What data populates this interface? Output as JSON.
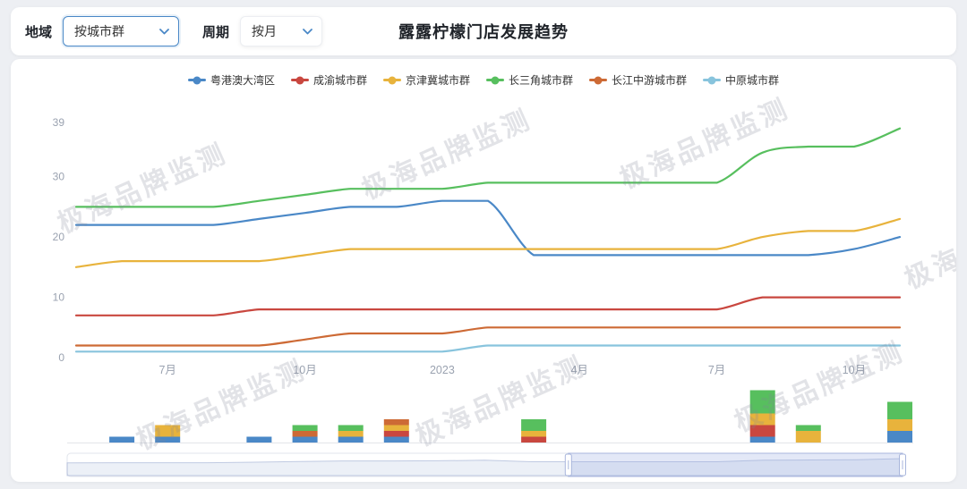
{
  "header": {
    "region_label": "地域",
    "region_select": {
      "value": "按城市群"
    },
    "period_label": "周期",
    "period_select": {
      "value": "按月"
    },
    "title": "露露柠檬门店发展趋势"
  },
  "watermark_text": "极海品牌监测",
  "chart_data": {
    "type": "line",
    "title": "露露柠檬门店发展趋势",
    "x": [
      "2022-05",
      "2022-06",
      "2022-07",
      "2022-08",
      "2022-09",
      "2022-10",
      "2022-11",
      "2022-12",
      "2023-01",
      "2023-02",
      "2023-03",
      "2023-04",
      "2023-05",
      "2023-06",
      "2023-07",
      "2023-08",
      "2023-09",
      "2023-10",
      "2023-11"
    ],
    "x_tick_labels": [
      "7月",
      "10月",
      "2023",
      "4月",
      "7月",
      "10月"
    ],
    "x_tick_indices": [
      2,
      5,
      8,
      11,
      14,
      17
    ],
    "yticks": [
      0,
      10,
      20,
      30,
      39
    ],
    "ylim": [
      0,
      39
    ],
    "grid": false,
    "legend_position": "top",
    "series": [
      {
        "name": "粤港澳大湾区",
        "color": "#4a88c7",
        "values": [
          22,
          22,
          22,
          22,
          23,
          24,
          25,
          25,
          26,
          26,
          17,
          17,
          17,
          17,
          17,
          17,
          17,
          18,
          20
        ]
      },
      {
        "name": "成渝城市群",
        "color": "#c9473f",
        "values": [
          7,
          7,
          7,
          7,
          8,
          8,
          8,
          8,
          8,
          8,
          8,
          8,
          8,
          8,
          8,
          10,
          10,
          10,
          10
        ]
      },
      {
        "name": "京津冀城市群",
        "color": "#e8b33c",
        "values": [
          15,
          16,
          16,
          16,
          16,
          17,
          18,
          18,
          18,
          18,
          18,
          18,
          18,
          18,
          18,
          20,
          21,
          21,
          23
        ]
      },
      {
        "name": "长三角城市群",
        "color": "#57bf5e",
        "values": [
          25,
          25,
          25,
          25,
          26,
          27,
          28,
          28,
          28,
          29,
          29,
          29,
          29,
          29,
          29,
          34,
          35,
          35,
          38
        ]
      },
      {
        "name": "长江中游城市群",
        "color": "#cd6a35",
        "values": [
          2,
          2,
          2,
          2,
          2,
          3,
          4,
          4,
          4,
          5,
          5,
          5,
          5,
          5,
          5,
          5,
          5,
          5,
          5
        ]
      },
      {
        "name": "中原城市群",
        "color": "#88c4dd",
        "values": [
          1,
          1,
          1,
          1,
          1,
          1,
          1,
          1,
          1,
          2,
          2,
          2,
          2,
          2,
          2,
          2,
          2,
          2,
          2
        ]
      }
    ],
    "bar_chart": {
      "type": "stacked-bar",
      "bars": [
        {
          "x": "2022-06",
          "segments": [
            {
              "series": "粤港澳大湾区",
              "value": 1
            }
          ]
        },
        {
          "x": "2022-07",
          "segments": [
            {
              "series": "粤港澳大湾区",
              "value": 1
            },
            {
              "series": "京津冀城市群",
              "value": 2
            }
          ]
        },
        {
          "x": "2022-09",
          "segments": [
            {
              "series": "粤港澳大湾区",
              "value": 1
            }
          ]
        },
        {
          "x": "2022-10",
          "segments": [
            {
              "series": "粤港澳大湾区",
              "value": 1
            },
            {
              "series": "长江中游城市群",
              "value": 1
            },
            {
              "series": "长三角城市群",
              "value": 1
            }
          ]
        },
        {
          "x": "2022-11",
          "segments": [
            {
              "series": "粤港澳大湾区",
              "value": 1
            },
            {
              "series": "京津冀城市群",
              "value": 1
            },
            {
              "series": "长三角城市群",
              "value": 1
            }
          ]
        },
        {
          "x": "2022-12",
          "segments": [
            {
              "series": "粤港澳大湾区",
              "value": 1
            },
            {
              "series": "成渝城市群",
              "value": 1
            },
            {
              "series": "京津冀城市群",
              "value": 1
            },
            {
              "series": "长江中游城市群",
              "value": 1
            }
          ]
        },
        {
          "x": "2023-03",
          "segments": [
            {
              "series": "成渝城市群",
              "value": 1
            },
            {
              "series": "京津冀城市群",
              "value": 1
            },
            {
              "series": "长三角城市群",
              "value": 2
            }
          ]
        },
        {
          "x": "2023-08",
          "segments": [
            {
              "series": "粤港澳大湾区",
              "value": 1
            },
            {
              "series": "成渝城市群",
              "value": 2
            },
            {
              "series": "京津冀城市群",
              "value": 2
            },
            {
              "series": "长三角城市群",
              "value": 4
            }
          ]
        },
        {
          "x": "2023-09",
          "segments": [
            {
              "series": "京津冀城市群",
              "value": 2
            },
            {
              "series": "长三角城市群",
              "value": 1
            }
          ]
        },
        {
          "x": "2023-11",
          "segments": [
            {
              "series": "粤港澳大湾区",
              "value": 2
            },
            {
              "series": "京津冀城市群",
              "value": 2
            },
            {
              "series": "长三角城市群",
              "value": 3
            }
          ]
        }
      ]
    },
    "datazoom_window": [
      0.6,
      1.0
    ]
  }
}
